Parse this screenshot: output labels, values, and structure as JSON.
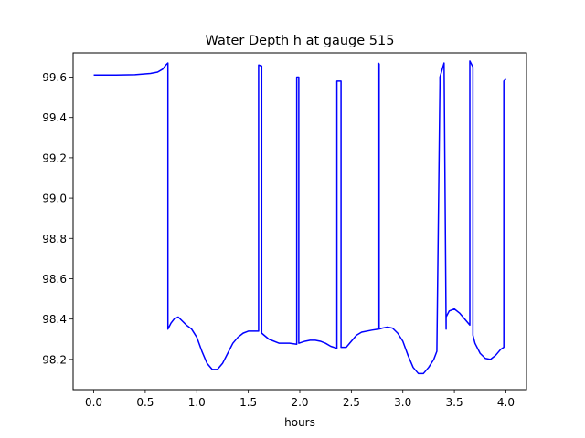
{
  "chart_data": {
    "type": "line",
    "title": "Water Depth h at gauge 515",
    "xlabel": "hours",
    "ylabel": "",
    "xlim": [
      -0.2,
      4.2
    ],
    "ylim": [
      98.05,
      99.72
    ],
    "xticks": [
      0.0,
      0.5,
      1.0,
      1.5,
      2.0,
      2.5,
      3.0,
      3.5,
      4.0
    ],
    "xtick_labels": [
      "0.0",
      "0.5",
      "1.0",
      "1.5",
      "2.0",
      "2.5",
      "3.0",
      "3.5",
      "4.0"
    ],
    "yticks": [
      98.2,
      98.4,
      98.6,
      98.8,
      99.0,
      99.2,
      99.4,
      99.6
    ],
    "ytick_labels": [
      "98.2",
      "98.4",
      "98.6",
      "98.8",
      "99.0",
      "99.2",
      "99.4",
      "99.6"
    ],
    "grid": false,
    "series": [
      {
        "color": "#0000ff",
        "x": [
          0.0,
          0.2,
          0.4,
          0.55,
          0.62,
          0.67,
          0.7,
          0.72,
          0.72,
          0.75,
          0.78,
          0.82,
          0.86,
          0.9,
          0.95,
          1.0,
          1.05,
          1.1,
          1.15,
          1.2,
          1.25,
          1.3,
          1.35,
          1.4,
          1.45,
          1.5,
          1.55,
          1.6,
          1.6,
          1.63,
          1.63,
          1.7,
          1.8,
          1.9,
          1.97,
          1.97,
          1.99,
          1.99,
          2.05,
          2.1,
          2.15,
          2.2,
          2.25,
          2.3,
          2.36,
          2.36,
          2.4,
          2.4,
          2.45,
          2.5,
          2.55,
          2.6,
          2.7,
          2.76,
          2.76,
          2.77,
          2.77,
          2.8,
          2.85,
          2.9,
          2.95,
          3.0,
          3.05,
          3.1,
          3.15,
          3.2,
          3.25,
          3.3,
          3.33,
          3.36,
          3.36,
          3.4,
          3.42,
          3.42,
          3.45,
          3.5,
          3.55,
          3.6,
          3.65,
          3.65,
          3.68,
          3.68,
          3.7,
          3.75,
          3.8,
          3.85,
          3.9,
          3.95,
          3.98,
          3.98,
          4.0
        ],
        "values": [
          99.61,
          99.61,
          99.612,
          99.618,
          99.625,
          99.64,
          99.66,
          99.67,
          98.35,
          98.38,
          98.4,
          98.41,
          98.39,
          98.37,
          98.35,
          98.31,
          98.24,
          98.18,
          98.15,
          98.15,
          98.18,
          98.23,
          98.28,
          98.31,
          98.33,
          98.34,
          98.34,
          98.34,
          99.66,
          99.655,
          98.33,
          98.3,
          98.28,
          98.28,
          98.275,
          99.6,
          99.6,
          98.28,
          98.29,
          98.295,
          98.295,
          98.29,
          98.28,
          98.265,
          98.255,
          99.58,
          99.58,
          98.26,
          98.26,
          98.29,
          98.32,
          98.335,
          98.345,
          98.35,
          99.67,
          99.665,
          98.35,
          98.355,
          98.36,
          98.355,
          98.33,
          98.29,
          98.22,
          98.16,
          98.13,
          98.13,
          98.16,
          98.2,
          98.24,
          99.57,
          99.6,
          99.67,
          98.35,
          98.41,
          98.44,
          98.45,
          98.43,
          98.4,
          98.37,
          99.68,
          99.65,
          98.32,
          98.28,
          98.23,
          98.205,
          98.2,
          98.22,
          98.25,
          98.26,
          99.58,
          99.59
        ]
      }
    ]
  }
}
